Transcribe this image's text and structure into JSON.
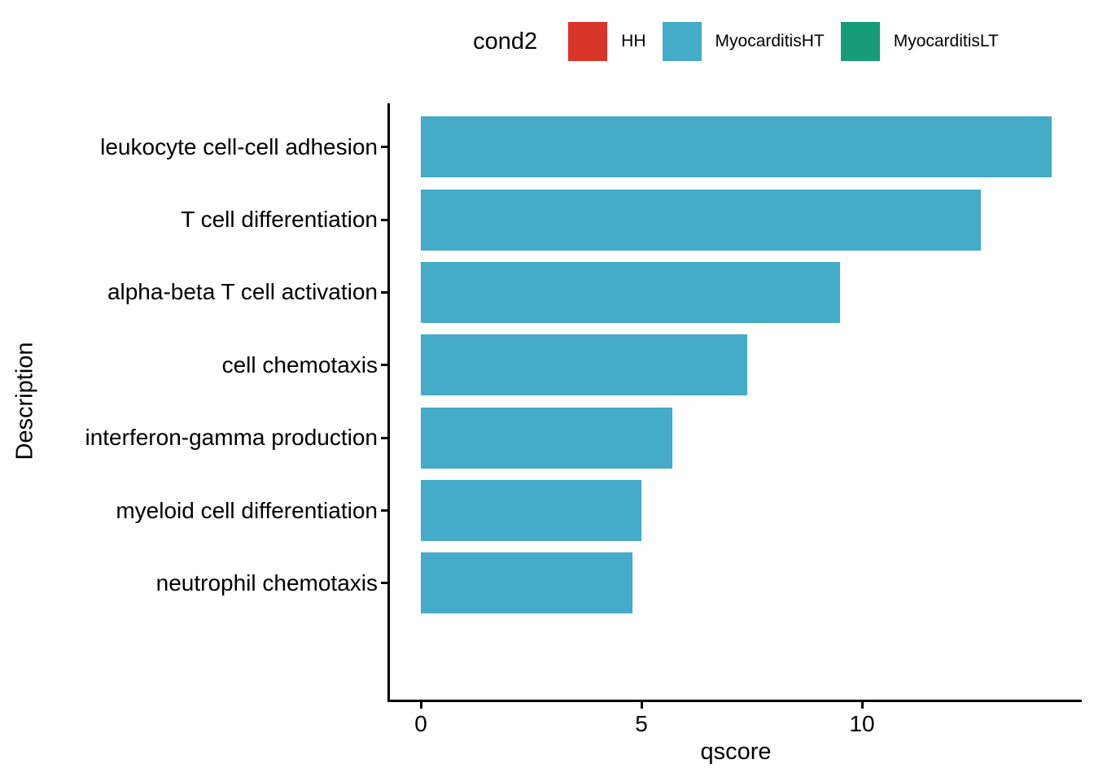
{
  "figure": {
    "background": "#ffffff"
  },
  "legend": {
    "title": "cond2",
    "items": [
      {
        "label": "HH",
        "color": "#db3428",
        "swatch_name": "legend-swatch-hh"
      },
      {
        "label": "MyocarditisHT",
        "color": "#44abc9",
        "swatch_name": "legend-swatch-myocarditis-ht"
      },
      {
        "label": "MyocarditisLT",
        "color": "#169b77",
        "swatch_name": "legend-swatch-myocarditis-lt"
      }
    ]
  },
  "chart_data": {
    "type": "bar",
    "orientation": "horizontal",
    "title": "",
    "xlabel": "qscore",
    "ylabel": "Description",
    "categories": [
      "leukocyte cell-cell adhesion",
      "T cell differentiation",
      "alpha-beta T cell activation",
      "cell chemotaxis",
      "interferon-gamma production",
      "myeloid cell differentiation",
      "neutrophil chemotaxis"
    ],
    "series": [
      {
        "name": "MyocarditisHT",
        "color": "#44abc9",
        "values": [
          14.3,
          12.7,
          9.5,
          7.4,
          5.7,
          5.0,
          4.8
        ]
      }
    ],
    "xlim": [
      0,
      15
    ],
    "x_ticks": [
      0,
      5,
      10
    ],
    "x_tick_labels": [
      "0",
      "5",
      "10"
    ],
    "grid": false,
    "legend_position": "top",
    "axis_color": "#000000",
    "text_color": "#000000"
  }
}
